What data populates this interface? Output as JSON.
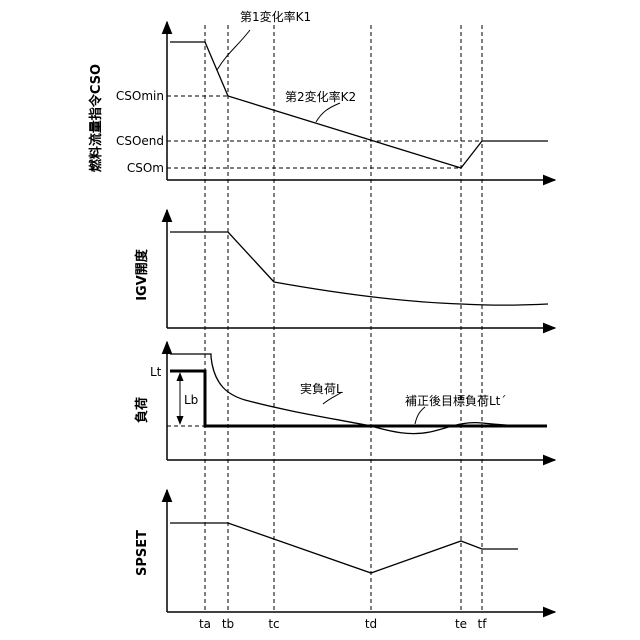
{
  "panels": {
    "cso": {
      "ylabel": "燃料流量指令CSO",
      "levels": {
        "min": "CSOmin",
        "end": "CSOend",
        "m": "CSOm"
      },
      "annotations": {
        "k1": "第1変化率K1",
        "k2": "第2変化率K2"
      }
    },
    "igv": {
      "ylabel": "IGV開度"
    },
    "load": {
      "ylabel": "負荷",
      "marks": {
        "lt": "Lt",
        "lb": "Lb"
      },
      "annotations": {
        "actual": "実負荷L",
        "target": "補正後目標負荷Lt´"
      }
    },
    "spset": {
      "ylabel": "SPSET"
    }
  },
  "time_labels": [
    "ta",
    "tb",
    "tc",
    "td",
    "te",
    "tf"
  ]
}
